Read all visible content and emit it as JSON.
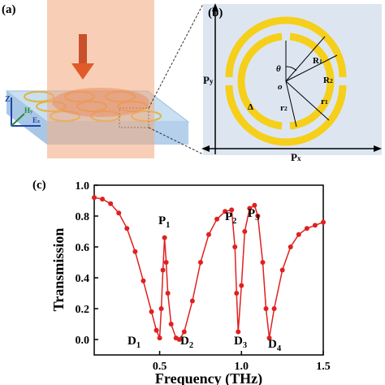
{
  "panel_a": {
    "label": "(a)",
    "z": "Z",
    "h": {
      "main": "H",
      "sub": "y"
    },
    "e": {
      "main": "E",
      "sub": "x"
    }
  },
  "panel_b": {
    "label": "(b)",
    "Px": {
      "main": "P",
      "sub": "x"
    },
    "Py": {
      "main": "P",
      "sub": "y"
    },
    "R1": {
      "main": "R",
      "sub": "1"
    },
    "R2": {
      "main": "R",
      "sub": "2"
    },
    "r1": {
      "main": "r",
      "sub": "1"
    },
    "r2": {
      "main": "r",
      "sub": "2"
    },
    "theta": "θ",
    "o": "o",
    "delta": "Δ"
  },
  "chart_data": {
    "type": "line",
    "panel_label": "(c)",
    "x_label": "Frequency (THz)",
    "y_label": "Transmission",
    "color": "#e02020",
    "markers": true,
    "xlim": [
      0.1,
      1.5
    ],
    "ylim": [
      -0.1,
      1.0
    ],
    "xticks": [
      0.5,
      {
        "value": 1.0,
        "label": "1.0"
      },
      1.5
    ],
    "yticks": [
      {
        "value": 0,
        "label": "0.0"
      },
      0.2,
      0.4,
      0.6,
      0.8,
      {
        "value": 1.0,
        "label": "1.0"
      }
    ],
    "x": [
      0.1,
      0.15,
      0.2,
      0.25,
      0.3,
      0.35,
      0.4,
      0.45,
      0.48,
      0.5,
      0.51,
      0.52,
      0.53,
      0.54,
      0.55,
      0.57,
      0.6,
      0.62,
      0.65,
      0.7,
      0.75,
      0.8,
      0.85,
      0.9,
      0.94,
      0.96,
      0.97,
      0.98,
      1.0,
      1.02,
      1.05,
      1.08,
      1.1,
      1.13,
      1.15,
      1.17,
      1.2,
      1.25,
      1.3,
      1.35,
      1.4,
      1.45,
      1.5
    ],
    "values": [
      0.92,
      0.91,
      0.88,
      0.82,
      0.72,
      0.57,
      0.38,
      0.18,
      0.06,
      0.01,
      0.2,
      0.45,
      0.66,
      0.5,
      0.3,
      0.1,
      0.01,
      0.0,
      0.05,
      0.25,
      0.5,
      0.68,
      0.78,
      0.83,
      0.84,
      0.6,
      0.3,
      0.05,
      0.35,
      0.7,
      0.85,
      0.87,
      0.8,
      0.5,
      0.2,
      0.01,
      0.2,
      0.45,
      0.6,
      0.68,
      0.72,
      0.74,
      0.76
    ],
    "annotations": [
      {
        "main": "P",
        "sub": "1"
      },
      {
        "main": "P",
        "sub": "2"
      },
      {
        "main": "P",
        "sub": "3"
      },
      {
        "main": "D",
        "sub": "1"
      },
      {
        "main": "D",
        "sub": "2"
      },
      {
        "main": "D",
        "sub": "3"
      },
      {
        "main": "D",
        "sub": "4"
      }
    ]
  }
}
